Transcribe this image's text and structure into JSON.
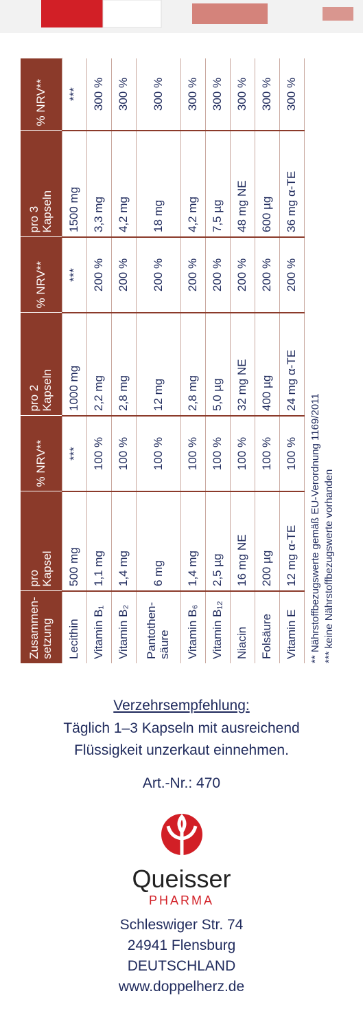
{
  "table": {
    "header": [
      "Zusammen-\nsetzung",
      "pro\nKapsel",
      "% NRV**",
      "pro 2\nKapseln",
      "% NRV**",
      "pro 3\nKapseln",
      "% NRV**"
    ],
    "rows": [
      [
        "Lecithin",
        "500 mg",
        "***",
        "1000 mg",
        "***",
        "1500 mg",
        "***"
      ],
      [
        "Vitamin B₁",
        "1,1 mg",
        "100 %",
        "2,2 mg",
        "200 %",
        "3,3 mg",
        "300 %"
      ],
      [
        "Vitamin B₂",
        "1,4 mg",
        "100 %",
        "2,8 mg",
        "200 %",
        "4,2 mg",
        "300 %"
      ],
      [
        "Pantothen-\nsäure",
        "6 mg",
        "100 %",
        "12 mg",
        "200 %",
        "18 mg",
        "300 %"
      ],
      [
        "Vitamin B₆",
        "1,4 mg",
        "100 %",
        "2,8 mg",
        "200 %",
        "4,2 mg",
        "300 %"
      ],
      [
        "Vitamin B₁₂",
        "2,5 µg",
        "100 %",
        "5,0 µg",
        "200 %",
        "7,5 µg",
        "300 %"
      ],
      [
        "Niacin",
        "16 mg NE",
        "100 %",
        "32 mg NE",
        "200 %",
        "48 mg NE",
        "300 %"
      ],
      [
        "Folsäure",
        "200 µg",
        "100 %",
        "400 µg",
        "200 %",
        "600 µg",
        "300 %"
      ],
      [
        "Vitamin E",
        "12 mg α-TE",
        "100 %",
        "24 mg α-TE",
        "200 %",
        "36 mg α-TE",
        "300 %"
      ]
    ],
    "footnotes": [
      "**  Nährstoffbezugswerte gemäß EU-Verordnung 1169/2011",
      "*** keine Nährstoffbezugswerte vorhanden"
    ]
  },
  "recommendation": {
    "title": "Verzehrsempfehlung:",
    "lines": [
      "Täglich 1–3 Kapseln mit ausreichend",
      "Flüssigkeit unzerkaut einnehmen."
    ]
  },
  "article": "Art.-Nr.: 470",
  "company": {
    "name": "Queisser",
    "sub": "PHARMA"
  },
  "address": [
    "Schleswiger Str. 74",
    "24941 Flensburg",
    "DEUTSCHLAND",
    "www.doppelherz.de"
  ]
}
